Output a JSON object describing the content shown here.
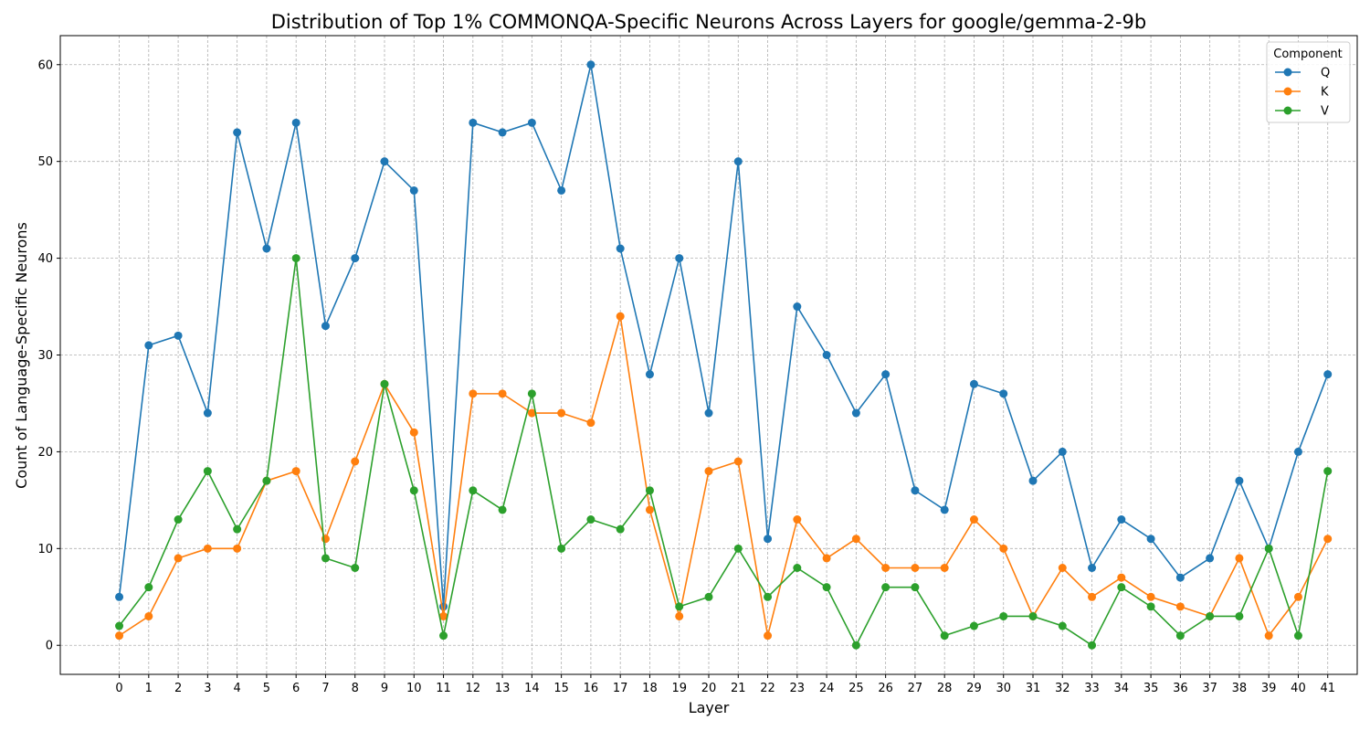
{
  "chart_data": {
    "type": "line",
    "title": "Distribution of Top 1% COMMONQA-Specific Neurons Across Layers for google/gemma-2-9b",
    "xlabel": "Layer",
    "ylabel": "Count of Language-Specific Neurons",
    "x": [
      0,
      1,
      2,
      3,
      4,
      5,
      6,
      7,
      8,
      9,
      10,
      11,
      12,
      13,
      14,
      15,
      16,
      17,
      18,
      19,
      20,
      21,
      22,
      23,
      24,
      25,
      26,
      27,
      28,
      29,
      30,
      31,
      32,
      33,
      34,
      35,
      36,
      37,
      38,
      39,
      40,
      41
    ],
    "xlim": [
      -2,
      42
    ],
    "ylim": [
      -3,
      63
    ],
    "yticks": [
      0,
      10,
      20,
      30,
      40,
      50,
      60
    ],
    "grid": true,
    "legend": {
      "title": "Component",
      "placement": "top-right"
    },
    "series": [
      {
        "name": "Q",
        "color": "#1f77b4",
        "values": [
          5,
          31,
          32,
          24,
          53,
          41,
          54,
          33,
          40,
          50,
          47,
          4,
          54,
          53,
          54,
          47,
          60,
          41,
          28,
          40,
          24,
          50,
          11,
          35,
          30,
          24,
          28,
          16,
          14,
          27,
          26,
          17,
          20,
          8,
          13,
          11,
          7,
          9,
          17,
          10,
          20,
          28
        ]
      },
      {
        "name": "K",
        "color": "#ff7f0e",
        "values": [
          1,
          3,
          9,
          10,
          10,
          17,
          18,
          11,
          19,
          27,
          22,
          3,
          26,
          26,
          24,
          24,
          23,
          34,
          14,
          3,
          18,
          19,
          1,
          13,
          9,
          11,
          8,
          8,
          8,
          13,
          10,
          3,
          8,
          5,
          7,
          5,
          4,
          3,
          9,
          1,
          5,
          11
        ]
      },
      {
        "name": "V",
        "color": "#2ca02c",
        "values": [
          2,
          6,
          13,
          18,
          12,
          17,
          40,
          9,
          8,
          27,
          16,
          1,
          16,
          14,
          26,
          10,
          13,
          12,
          16,
          4,
          5,
          10,
          5,
          8,
          6,
          0,
          6,
          6,
          1,
          2,
          3,
          3,
          2,
          0,
          6,
          4,
          1,
          3,
          3,
          10,
          1,
          18
        ]
      }
    ]
  }
}
